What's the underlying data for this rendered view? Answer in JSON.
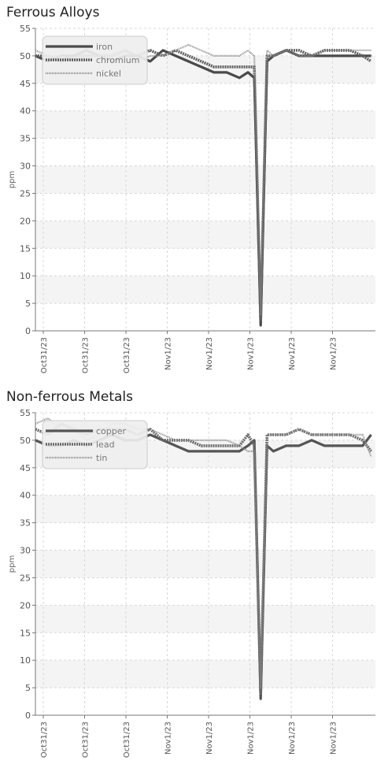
{
  "chart_data": [
    {
      "type": "line",
      "title": "Ferrous Alloys",
      "xlabel": "",
      "ylabel": "ppm",
      "ylim": [
        0,
        55
      ],
      "yticks": [
        0,
        5,
        10,
        15,
        20,
        25,
        30,
        35,
        40,
        45,
        50,
        55
      ],
      "xtick_labels": [
        "Oct31/23",
        "Oct31/23",
        "Oct31/23",
        "Nov1/23",
        "Nov1/23",
        "Nov1/23",
        "Nov1/23",
        "Nov1/23"
      ],
      "grid": true,
      "legend_position": "top-left",
      "colors": {
        "iron": "#4a4a4a",
        "chromium": "#5e5e5e",
        "nickel": "#8a8a8a"
      },
      "x": [
        0,
        0.3,
        0.6,
        0.9,
        1.2,
        1.5,
        1.8,
        2.1,
        2.4,
        2.7,
        3.0,
        3.3,
        3.6,
        3.9,
        4.2,
        4.5,
        4.8,
        5.0,
        5.15,
        5.3,
        5.45,
        5.6,
        5.9,
        6.2,
        6.5,
        6.8,
        7.1,
        7.4,
        7.7,
        7.9
      ],
      "series": [
        {
          "name": "iron",
          "values": [
            50,
            49,
            50,
            50,
            51,
            50,
            49,
            50,
            50,
            49,
            51,
            50,
            49,
            48,
            47,
            47,
            46,
            47,
            46,
            1,
            49,
            50,
            51,
            50,
            50,
            50,
            50,
            50,
            50,
            50
          ]
        },
        {
          "name": "chromium",
          "values": [
            50,
            50,
            49,
            50,
            50,
            50,
            50,
            51,
            50,
            51,
            50,
            51,
            50,
            49,
            48,
            48,
            48,
            48,
            48,
            2,
            50,
            50,
            51,
            51,
            50,
            51,
            51,
            51,
            50,
            49
          ]
        },
        {
          "name": "nickel",
          "values": [
            51,
            50,
            50,
            49,
            50,
            50,
            49,
            51,
            49,
            50,
            50,
            51,
            52,
            51,
            50,
            50,
            50,
            51,
            50,
            3,
            51,
            50,
            51,
            50,
            50,
            51,
            51,
            51,
            51,
            51
          ]
        }
      ]
    },
    {
      "type": "line",
      "title": "Non-ferrous Metals",
      "xlabel": "",
      "ylabel": "ppm",
      "ylim": [
        0,
        55
      ],
      "yticks": [
        0,
        5,
        10,
        15,
        20,
        25,
        30,
        35,
        40,
        45,
        50,
        55
      ],
      "xtick_labels": [
        "Oct31/23",
        "Oct31/23",
        "Oct31/23",
        "Nov1/23",
        "Nov1/23",
        "Nov1/23",
        "Nov1/23",
        "Nov1/23"
      ],
      "grid": true,
      "legend_position": "top-left",
      "colors": {
        "copper": "#555555",
        "lead": "#6a6a6a",
        "tin": "#8a8a8a"
      },
      "x": [
        0,
        0.3,
        0.6,
        0.9,
        1.2,
        1.5,
        1.8,
        2.1,
        2.4,
        2.7,
        3.0,
        3.3,
        3.6,
        3.9,
        4.2,
        4.5,
        4.8,
        5.0,
        5.15,
        5.3,
        5.45,
        5.6,
        5.9,
        6.2,
        6.5,
        6.8,
        7.1,
        7.4,
        7.7,
        7.9
      ],
      "series": [
        {
          "name": "copper",
          "values": [
            50,
            49,
            49,
            50,
            49,
            50,
            51,
            50,
            50,
            51,
            50,
            49,
            48,
            48,
            48,
            48,
            48,
            49,
            50,
            3,
            49,
            48,
            49,
            49,
            50,
            49,
            49,
            49,
            49,
            51
          ]
        },
        {
          "name": "lead",
          "values": [
            52,
            51,
            53,
            52,
            51,
            52,
            52,
            52,
            51,
            52,
            50,
            50,
            50,
            49,
            49,
            49,
            49,
            51,
            49,
            4,
            51,
            51,
            51,
            52,
            51,
            51,
            51,
            51,
            50,
            48
          ]
        },
        {
          "name": "tin",
          "values": [
            53,
            54,
            52,
            52,
            50,
            51,
            53,
            53,
            52,
            52,
            51,
            50,
            50,
            50,
            50,
            50,
            49,
            48,
            48,
            5,
            51,
            51,
            51,
            52,
            51,
            51,
            51,
            51,
            51,
            47
          ]
        }
      ]
    }
  ]
}
